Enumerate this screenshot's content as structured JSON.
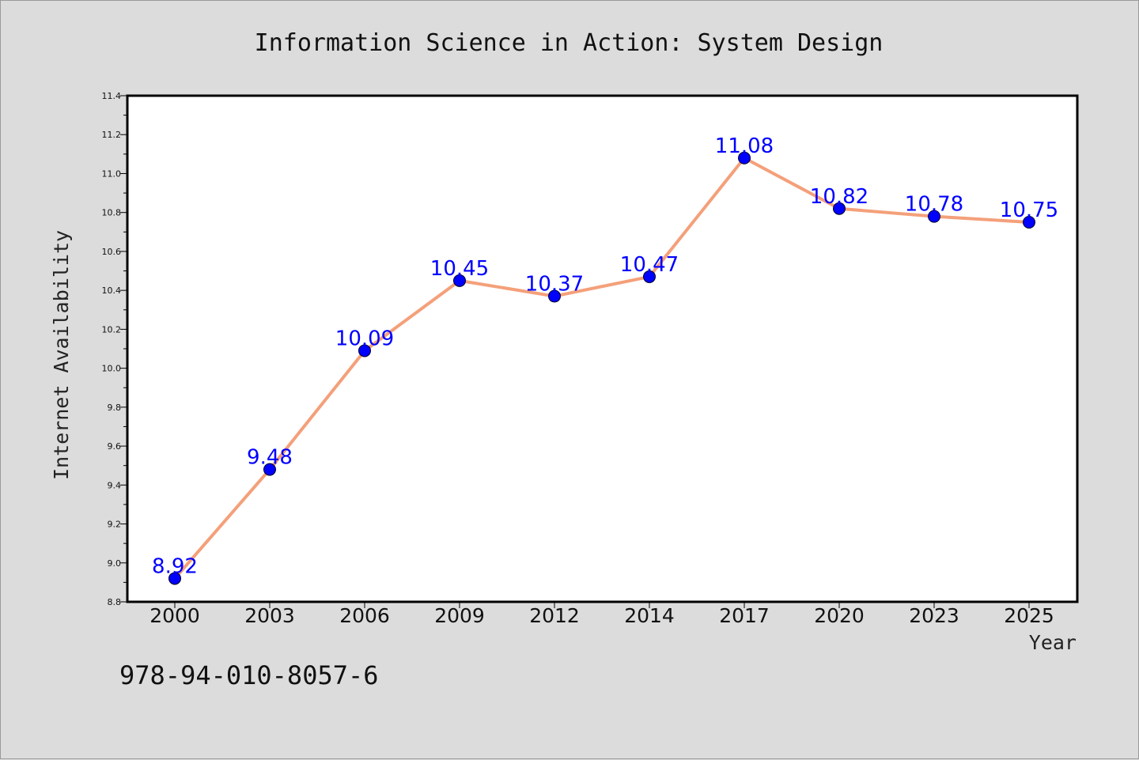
{
  "chart_data": {
    "type": "line",
    "title": "Information Science in Action: System Design",
    "xlabel": "Year",
    "ylabel": "Internet Availability",
    "categories": [
      "2000",
      "2003",
      "2006",
      "2009",
      "2012",
      "2014",
      "2017",
      "2020",
      "2023",
      "2025"
    ],
    "values": [
      8.92,
      9.48,
      10.09,
      10.45,
      10.37,
      10.47,
      11.08,
      10.82,
      10.78,
      10.75
    ],
    "data_labels": [
      "8.92",
      "9.48",
      "10.09",
      "10.45",
      "10.37",
      "10.47",
      "11.08",
      "10.82",
      "10.78",
      "10.75"
    ],
    "ylim": [
      8.8,
      11.4
    ],
    "yticks": [
      "8.8",
      "9.0",
      "9.2",
      "9.4",
      "9.6",
      "9.8",
      "10.0",
      "10.2",
      "10.4",
      "10.6",
      "10.8",
      "11.0",
      "11.2",
      "11.4"
    ],
    "grid": false,
    "line_color": "#f4a07a",
    "marker_color": "#0000ff",
    "label_color": "#0000ff"
  },
  "footer": {
    "isbn": "978-94-010-8057-6"
  }
}
